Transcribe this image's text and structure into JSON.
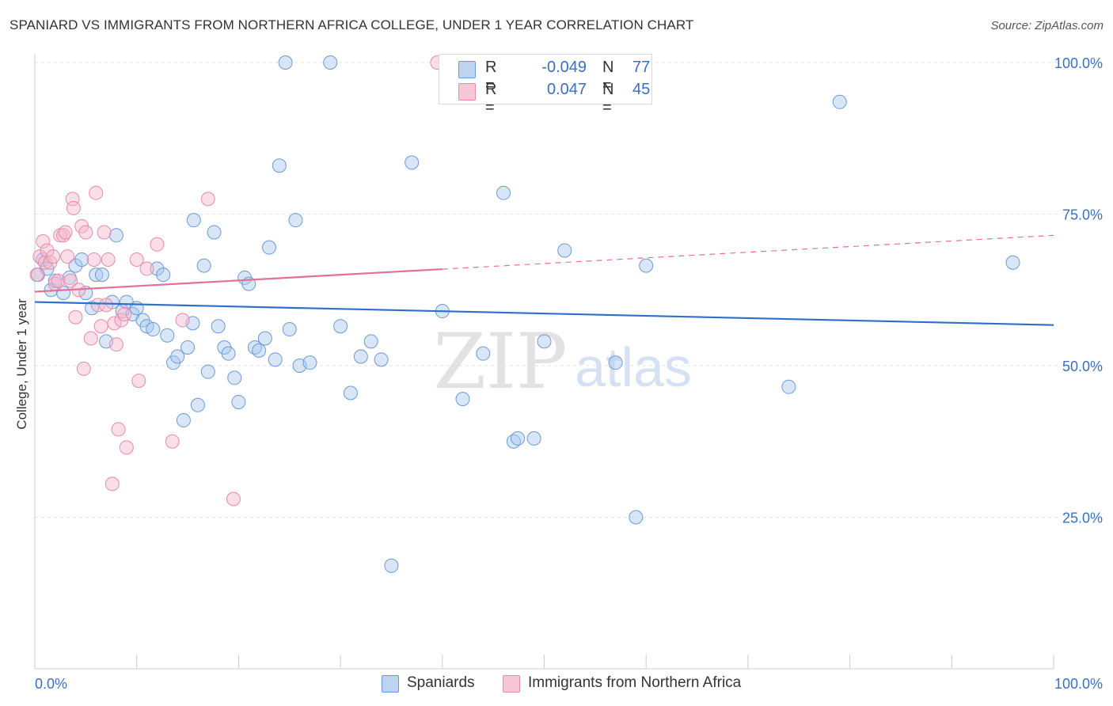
{
  "header": {
    "title": "SPANIARD VS IMMIGRANTS FROM NORTHERN AFRICA COLLEGE, UNDER 1 YEAR CORRELATION CHART",
    "source": "Source: ZipAtlas.com"
  },
  "legend": {
    "rows": [
      {
        "r_label": "R =",
        "r_value": "-0.049",
        "n_label": "N =",
        "n_value": "77"
      },
      {
        "r_label": "R =",
        "r_value": "0.047",
        "n_label": "N =",
        "n_value": "45"
      }
    ]
  },
  "watermark": {
    "zip": "ZIP",
    "atlas": "atlas"
  },
  "chart_data": {
    "type": "scatter",
    "title": "SPANIARD VS IMMIGRANTS FROM NORTHERN AFRICA COLLEGE, UNDER 1 YEAR CORRELATION CHART",
    "xlabel": "",
    "ylabel": "College, Under 1 year",
    "xlim": [
      0,
      100
    ],
    "ylim": [
      0,
      105
    ],
    "x_tick_labels": [
      "0.0%",
      "100.0%"
    ],
    "y_ticks": [
      25,
      50,
      75,
      100
    ],
    "y_tick_labels": [
      "25.0%",
      "50.0%",
      "75.0%",
      "100.0%"
    ],
    "grid": true,
    "legend_position": "top-center",
    "series": [
      {
        "name": "Spaniards",
        "color": "#a9c7ee",
        "stroke": "#6d9ad6",
        "line_color": "#2f6fcb",
        "trend": {
          "x": [
            0,
            100
          ],
          "y": [
            60.5,
            56.7
          ],
          "dashed_from": null
        },
        "points": [
          [
            0.3,
            65.0
          ],
          [
            0.8,
            67.5
          ],
          [
            1.2,
            66.0
          ],
          [
            1.6,
            62.5
          ],
          [
            2.0,
            64.0
          ],
          [
            2.8,
            62.0
          ],
          [
            3.4,
            64.5
          ],
          [
            4.0,
            66.5
          ],
          [
            4.6,
            67.5
          ],
          [
            5.0,
            62.0
          ],
          [
            5.6,
            59.5
          ],
          [
            6.0,
            65.0
          ],
          [
            6.6,
            65.0
          ],
          [
            7.0,
            54.0
          ],
          [
            7.6,
            60.5
          ],
          [
            8.0,
            71.5
          ],
          [
            8.6,
            59.0
          ],
          [
            9.0,
            60.5
          ],
          [
            9.6,
            58.5
          ],
          [
            10.0,
            59.5
          ],
          [
            10.6,
            57.5
          ],
          [
            11.0,
            56.5
          ],
          [
            11.6,
            56.0
          ],
          [
            12.0,
            66.0
          ],
          [
            12.6,
            65.0
          ],
          [
            13.0,
            55.0
          ],
          [
            13.6,
            50.5
          ],
          [
            14.0,
            51.5
          ],
          [
            14.6,
            41.0
          ],
          [
            15.0,
            53.0
          ],
          [
            15.6,
            74.0
          ],
          [
            16.0,
            43.5
          ],
          [
            16.6,
            66.5
          ],
          [
            17.0,
            49.0
          ],
          [
            17.6,
            72.0
          ],
          [
            18.0,
            56.5
          ],
          [
            18.6,
            53.0
          ],
          [
            19.0,
            52.0
          ],
          [
            19.6,
            48.0
          ],
          [
            20.0,
            44.0
          ],
          [
            20.6,
            64.5
          ],
          [
            21.0,
            63.5
          ],
          [
            21.6,
            53.0
          ],
          [
            22.0,
            52.5
          ],
          [
            22.6,
            54.5
          ],
          [
            23.0,
            69.5
          ],
          [
            23.6,
            51.0
          ],
          [
            24.0,
            83.0
          ],
          [
            24.6,
            100.0
          ],
          [
            25.0,
            56.0
          ],
          [
            25.6,
            74.0
          ],
          [
            26.0,
            50.0
          ],
          [
            27.0,
            50.5
          ],
          [
            29.0,
            100.0
          ],
          [
            30.0,
            56.5
          ],
          [
            31.0,
            45.5
          ],
          [
            32.0,
            51.5
          ],
          [
            33.0,
            54.0
          ],
          [
            35.0,
            17.0
          ],
          [
            37.0,
            83.5
          ],
          [
            40.0,
            59.0
          ],
          [
            42.0,
            44.5
          ],
          [
            44.0,
            52.0
          ],
          [
            46.0,
            78.5
          ],
          [
            47.0,
            37.5
          ],
          [
            47.4,
            38.0
          ],
          [
            49.0,
            38.0
          ],
          [
            50.0,
            54.0
          ],
          [
            52.0,
            69.0
          ],
          [
            57.0,
            50.5
          ],
          [
            59.0,
            25.0
          ],
          [
            60.0,
            66.5
          ],
          [
            74.0,
            46.5
          ],
          [
            79.0,
            93.5
          ],
          [
            96.0,
            67.0
          ],
          [
            34.0,
            51.0
          ],
          [
            15.5,
            57.0
          ]
        ]
      },
      {
        "name": "Immigrants from Northern Africa",
        "color": "#f5b8cb",
        "stroke": "#e88aaa",
        "line_color": "#e36f98",
        "trend": {
          "x": [
            0,
            100
          ],
          "y": [
            62.2,
            71.5
          ],
          "dashed_from": 40
        },
        "points": [
          [
            0.2,
            65.0
          ],
          [
            0.5,
            68.0
          ],
          [
            0.8,
            70.5
          ],
          [
            1.0,
            67.0
          ],
          [
            1.2,
            69.0
          ],
          [
            1.5,
            67.0
          ],
          [
            1.8,
            68.0
          ],
          [
            2.0,
            63.5
          ],
          [
            2.3,
            64.0
          ],
          [
            2.5,
            71.5
          ],
          [
            2.8,
            71.5
          ],
          [
            3.0,
            72.0
          ],
          [
            3.2,
            68.0
          ],
          [
            3.5,
            64.0
          ],
          [
            3.7,
            77.5
          ],
          [
            3.8,
            76.0
          ],
          [
            4.0,
            58.0
          ],
          [
            4.3,
            62.5
          ],
          [
            4.6,
            73.0
          ],
          [
            4.8,
            49.5
          ],
          [
            5.0,
            72.0
          ],
          [
            5.5,
            54.5
          ],
          [
            5.8,
            67.5
          ],
          [
            6.0,
            78.5
          ],
          [
            6.2,
            60.0
          ],
          [
            6.5,
            56.5
          ],
          [
            6.8,
            72.0
          ],
          [
            7.0,
            60.0
          ],
          [
            7.2,
            67.5
          ],
          [
            7.6,
            30.5
          ],
          [
            7.8,
            57.0
          ],
          [
            8.0,
            53.5
          ],
          [
            8.2,
            39.5
          ],
          [
            8.5,
            57.5
          ],
          [
            8.8,
            58.5
          ],
          [
            9.0,
            36.5
          ],
          [
            10.0,
            67.5
          ],
          [
            10.2,
            47.5
          ],
          [
            11.0,
            66.0
          ],
          [
            12.0,
            70.0
          ],
          [
            13.5,
            37.5
          ],
          [
            14.5,
            57.5
          ],
          [
            17.0,
            77.5
          ],
          [
            19.5,
            28.0
          ],
          [
            39.5,
            100.0
          ]
        ]
      }
    ]
  }
}
